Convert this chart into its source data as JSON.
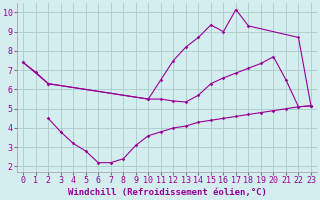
{
  "line1_x": [
    0,
    1,
    2,
    10,
    11,
    12,
    13,
    14,
    15,
    16,
    17,
    18,
    22,
    23
  ],
  "line1_y": [
    7.4,
    6.9,
    6.3,
    5.5,
    6.5,
    7.5,
    8.2,
    8.7,
    9.35,
    9.0,
    10.15,
    9.3,
    8.7,
    5.15
  ],
  "line2_x": [
    0,
    2,
    10,
    11,
    12,
    13,
    14,
    15,
    16,
    17,
    18,
    19,
    20,
    21,
    22,
    23
  ],
  "line2_y": [
    7.4,
    6.3,
    5.5,
    5.5,
    5.4,
    5.35,
    5.7,
    6.3,
    6.6,
    6.85,
    7.1,
    7.35,
    7.7,
    6.5,
    5.1,
    5.15
  ],
  "line3_x": [
    2,
    3,
    4,
    5,
    6,
    7,
    8,
    9,
    10,
    11,
    12,
    13,
    14,
    15,
    16,
    17,
    18,
    19,
    20,
    21,
    22,
    23
  ],
  "line3_y": [
    4.5,
    3.8,
    3.2,
    2.8,
    2.2,
    2.2,
    2.4,
    3.1,
    3.6,
    3.8,
    4.0,
    4.1,
    4.3,
    4.4,
    4.5,
    4.6,
    4.7,
    4.8,
    4.9,
    5.0,
    5.1,
    5.15
  ],
  "line_color": "#990099",
  "bg_color": "#d4edee",
  "grid_color": "#aacccc",
  "xlabel": "Windchill (Refroidissement éolien,°C)",
  "xlim": [
    -0.5,
    23.5
  ],
  "ylim": [
    1.7,
    10.5
  ],
  "xticks": [
    0,
    1,
    2,
    3,
    4,
    5,
    6,
    7,
    8,
    9,
    10,
    11,
    12,
    13,
    14,
    15,
    16,
    17,
    18,
    19,
    20,
    21,
    22,
    23
  ],
  "yticks": [
    2,
    3,
    4,
    5,
    6,
    7,
    8,
    9,
    10
  ],
  "xlabel_fontsize": 6.5,
  "tick_fontsize": 6
}
